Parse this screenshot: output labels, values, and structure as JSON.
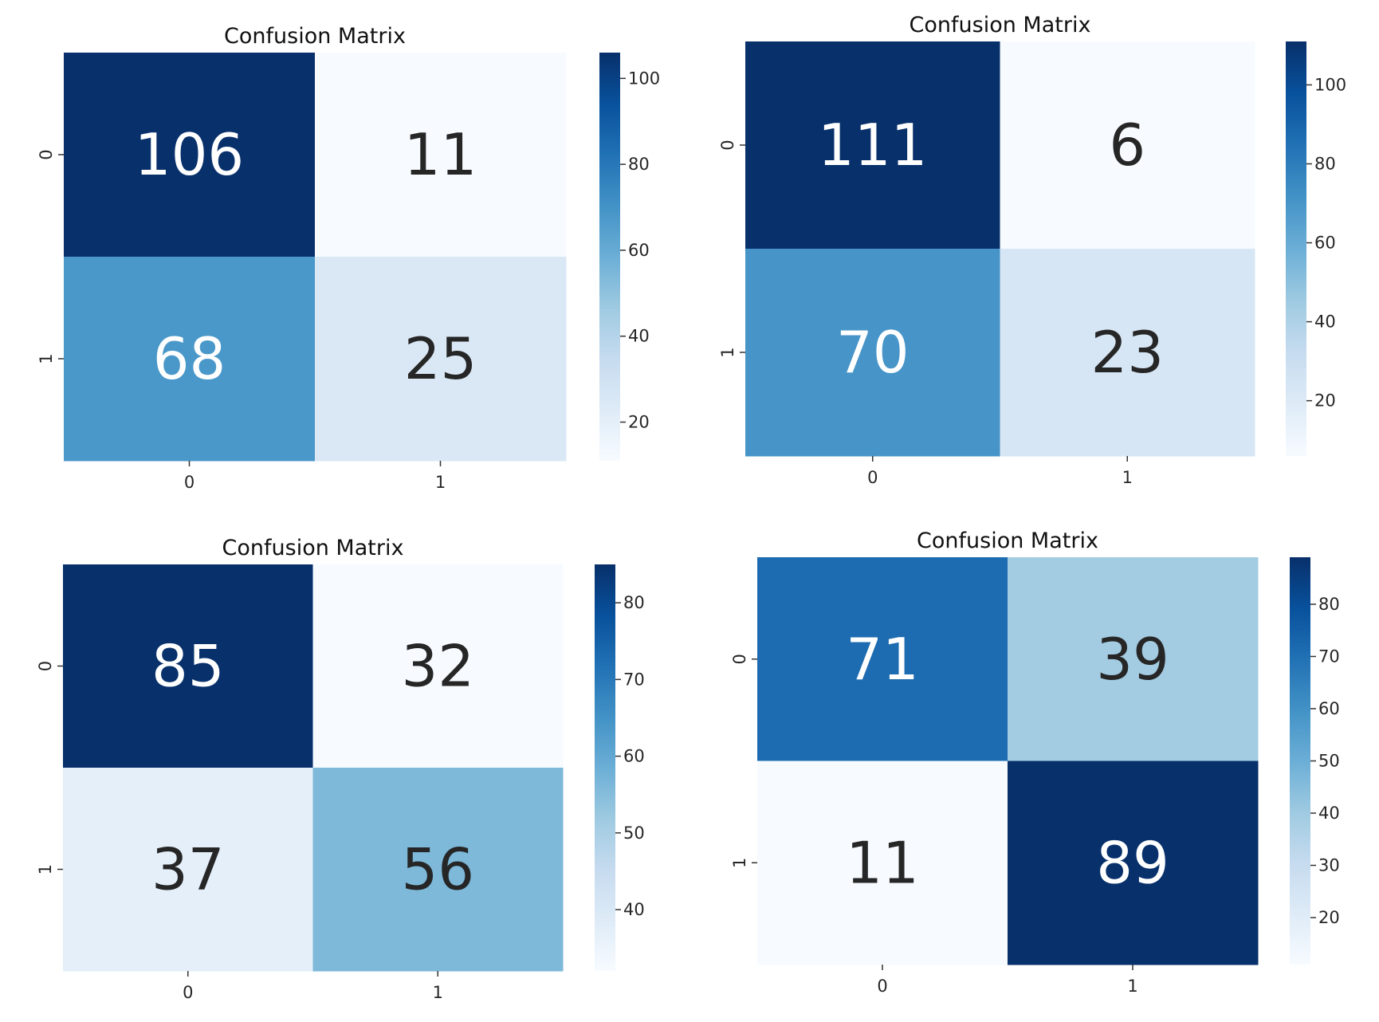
{
  "chart_data": [
    {
      "type": "heatmap",
      "title": "Confusion Matrix",
      "x_categories": [
        "0",
        "1"
      ],
      "y_categories": [
        "0",
        "1"
      ],
      "values": [
        [
          106,
          11
        ],
        [
          68,
          25
        ]
      ],
      "colormap": "Blues",
      "colorbar": {
        "range": [
          11,
          106
        ],
        "ticks": [
          20,
          40,
          60,
          80,
          100
        ]
      },
      "annotations": true
    },
    {
      "type": "heatmap",
      "title": "Confusion Matrix",
      "x_categories": [
        "0",
        "1"
      ],
      "y_categories": [
        "0",
        "1"
      ],
      "values": [
        [
          111,
          6
        ],
        [
          70,
          23
        ]
      ],
      "colormap": "Blues",
      "colorbar": {
        "range": [
          6,
          111
        ],
        "ticks": [
          20,
          40,
          60,
          80,
          100
        ]
      },
      "annotations": true
    },
    {
      "type": "heatmap",
      "title": "Confusion Matrix",
      "x_categories": [
        "0",
        "1"
      ],
      "y_categories": [
        "0",
        "1"
      ],
      "values": [
        [
          85,
          32
        ],
        [
          37,
          56
        ]
      ],
      "colormap": "Blues",
      "colorbar": {
        "range": [
          32,
          85
        ],
        "ticks": [
          40,
          50,
          60,
          70,
          80
        ]
      },
      "annotations": true
    },
    {
      "type": "heatmap",
      "title": "Confusion Matrix",
      "x_categories": [
        "0",
        "1"
      ],
      "y_categories": [
        "0",
        "1"
      ],
      "values": [
        [
          71,
          39
        ],
        [
          11,
          89
        ]
      ],
      "colormap": "Blues",
      "colorbar": {
        "range": [
          11,
          89
        ],
        "ticks": [
          20,
          30,
          40,
          50,
          60,
          70,
          80
        ]
      },
      "annotations": true
    }
  ]
}
